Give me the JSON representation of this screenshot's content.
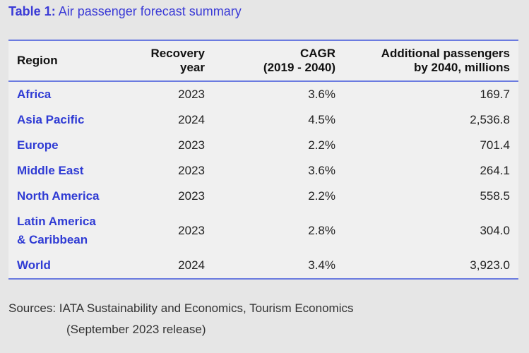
{
  "title": {
    "label": "Table 1:",
    "text": "Air passenger forecast summary"
  },
  "table": {
    "headers": {
      "region": "Region",
      "recovery_line1": "Recovery",
      "recovery_line2": "year",
      "cagr_line1": "CAGR",
      "cagr_line2": "(2019 - 2040)",
      "additional_line1": "Additional passengers",
      "additional_line2": "by 2040, millions"
    },
    "rows": [
      {
        "region_line1": "Africa",
        "region_line2": "",
        "recovery_year": "2023",
        "cagr": "3.6%",
        "additional": "169.7"
      },
      {
        "region_line1": "Asia Pacific",
        "region_line2": "",
        "recovery_year": "2024",
        "cagr": "4.5%",
        "additional": "2,536.8"
      },
      {
        "region_line1": "Europe",
        "region_line2": "",
        "recovery_year": "2023",
        "cagr": "2.2%",
        "additional": "701.4"
      },
      {
        "region_line1": "Middle East",
        "region_line2": "",
        "recovery_year": "2023",
        "cagr": "3.6%",
        "additional": "264.1"
      },
      {
        "region_line1": "North America",
        "region_line2": "",
        "recovery_year": "2023",
        "cagr": "2.2%",
        "additional": "558.5"
      },
      {
        "region_line1": "Latin America",
        "region_line2": "& Caribbean",
        "recovery_year": "2023",
        "cagr": "2.8%",
        "additional": "304.0"
      },
      {
        "region_line1": "World",
        "region_line2": "",
        "recovery_year": "2024",
        "cagr": "3.4%",
        "additional": "3,923.0"
      }
    ]
  },
  "sources": {
    "line1": "Sources: IATA Sustainability and Economics, Tourism Economics",
    "line2": "(September 2023 release)"
  },
  "colors": {
    "title": "#3a3ad6",
    "region": "#2f3bd4",
    "rule": "#6b7be0"
  }
}
